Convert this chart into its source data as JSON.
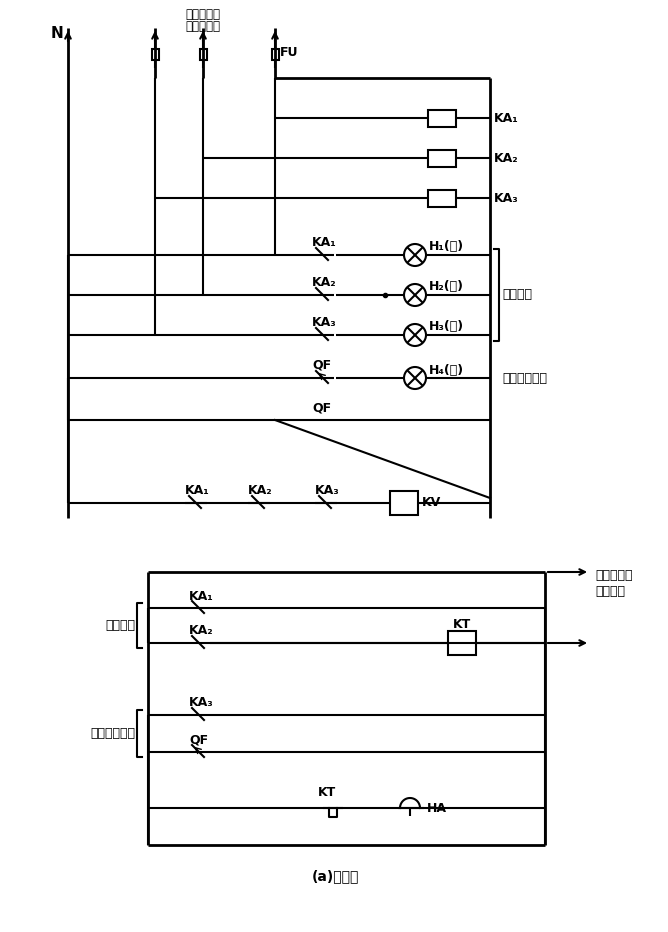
{
  "title": "(a)电路一",
  "bg_color": "#ffffff",
  "top_label_line1": "去低压总断",
  "top_label_line2": "路器出线端",
  "N_label": "N",
  "FU_label": "FU",
  "KA1_coil": "KA₁",
  "KA2_coil": "KA₂",
  "KA3_coil": "KA₃",
  "KA1_nc": "KA₁",
  "KA2_nc": "KA₂",
  "KA3_nc": "KA₃",
  "QF_nc": "QF",
  "QF_label": "QF",
  "H1_label": "H₁(蓝)",
  "H2_label": "H₂(黄)",
  "H3_label": "H₃(绿)",
  "H4_label": "H₄(红)",
  "right_brace_label": "缺相指示",
  "accident_label": "事故跳闸指示",
  "KV_label": "KV",
  "KA1_kv": "KA₁",
  "KA2_kv": "KA₂",
  "KA3_kv": "KA₃",
  "power_label_line1": "接备用电源",
  "power_label_line2": "或蓄电池",
  "lack_phase_alarm": "缺相报警",
  "accident_alarm": "事故跳闸报警",
  "KA1_bot": "KA₁",
  "KA2_bot": "KA₂",
  "KA3_bot": "KA₃",
  "QF_bot": "QF",
  "KT_label": "KT",
  "KT2_label": "KT",
  "HA_label": "HA"
}
